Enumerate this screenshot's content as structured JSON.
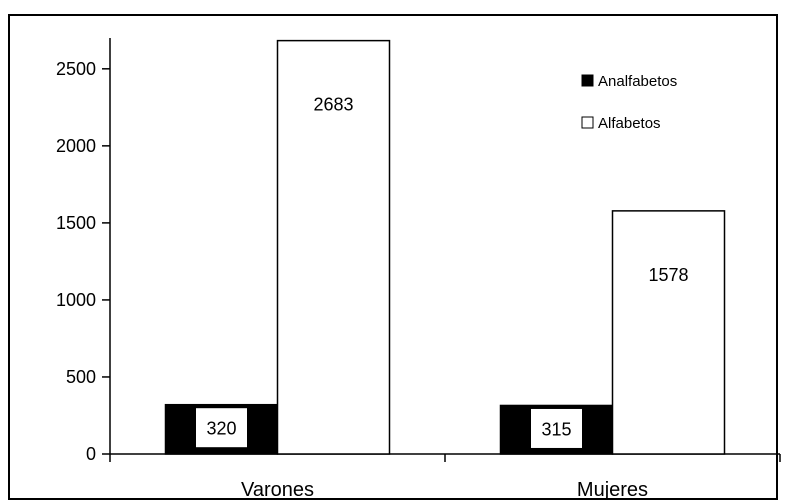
{
  "chart_data": {
    "type": "bar",
    "categories": [
      "Varones",
      "Mujeres"
    ],
    "series": [
      {
        "name": "Analfabetos",
        "values": [
          320,
          315
        ],
        "color": "#000000"
      },
      {
        "name": "Alfabetos",
        "values": [
          2683,
          1578
        ],
        "color": "#ffffff"
      }
    ],
    "data_labels": [
      [
        "320",
        "315"
      ],
      [
        "2683",
        "1578"
      ]
    ],
    "legend": {
      "labels": [
        "Analfabetos",
        "Alfabetos"
      ],
      "position": "top-right"
    },
    "yticks": [
      "0",
      "500",
      "1000",
      "1500",
      "2000",
      "2500"
    ],
    "ylim": [
      0,
      2700
    ],
    "title": "",
    "xlabel": "",
    "ylabel": "",
    "grid": false
  }
}
